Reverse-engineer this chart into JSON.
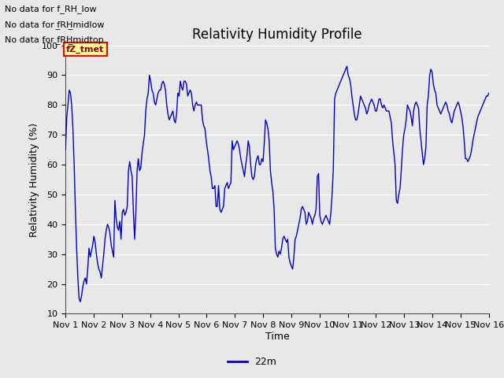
{
  "title": "Relativity Humidity Profile",
  "xlabel": "Time",
  "ylabel": "Relativity Humidity (%)",
  "ylim": [
    10,
    100
  ],
  "yticks": [
    10,
    20,
    30,
    40,
    50,
    60,
    70,
    80,
    90,
    100
  ],
  "xtick_labels": [
    "Nov 1",
    "Nov 2",
    "Nov 3",
    "Nov 4",
    "Nov 5",
    "Nov 6",
    "Nov 7",
    "Nov 8",
    "Nov 9",
    "Nov 10",
    "Nov 11",
    "Nov 12",
    "Nov 13",
    "Nov 14",
    "Nov 15",
    "Nov 16"
  ],
  "line_color": "#0000cc",
  "line_label": "22m",
  "bg_color": "#e8e8e8",
  "grid_color": "#ffffff",
  "text_annotations": [
    "No data for f_RH_low",
    "No data for f̲RH̲midlow",
    "No data for f̲RH̲midtop"
  ],
  "annotation_box_label": "fZ_tmet",
  "rh_values": [
    65,
    76,
    80,
    85,
    84,
    80,
    72,
    60,
    45,
    32,
    22,
    15,
    14,
    16,
    19,
    21,
    22,
    20,
    25,
    32,
    29,
    31,
    33,
    36,
    34,
    30,
    27,
    25,
    24,
    22,
    26,
    30,
    35,
    38,
    40,
    39,
    37,
    33,
    31,
    29,
    48,
    42,
    39,
    38,
    41,
    35,
    44,
    45,
    43,
    44,
    46,
    58,
    61,
    58,
    56,
    44,
    35,
    44,
    58,
    62,
    58,
    59,
    64,
    67,
    70,
    78,
    82,
    84,
    90,
    88,
    85,
    84,
    81,
    80,
    82,
    84,
    85,
    85,
    87,
    88,
    87,
    85,
    80,
    77,
    75,
    76,
    77,
    78,
    75,
    74,
    77,
    84,
    83,
    88,
    86,
    85,
    88,
    88,
    87,
    83,
    84,
    85,
    84,
    80,
    78,
    80,
    81,
    80,
    80,
    80,
    80,
    75,
    73,
    72,
    68,
    65,
    62,
    58,
    56,
    52,
    52,
    53,
    46,
    46,
    53,
    45,
    44,
    45,
    46,
    52,
    53,
    54,
    52,
    53,
    54,
    68,
    65,
    66,
    67,
    68,
    67,
    65,
    62,
    60,
    58,
    56,
    60,
    63,
    68,
    66,
    60,
    56,
    55,
    56,
    60,
    62,
    63,
    60,
    60,
    62,
    61,
    67,
    75,
    74,
    72,
    68,
    58,
    54,
    51,
    45,
    32,
    30,
    29,
    31,
    30,
    32,
    35,
    36,
    35,
    34,
    35,
    29,
    27,
    26,
    25,
    29,
    35,
    36,
    38,
    40,
    42,
    45,
    46,
    45,
    44,
    40,
    41,
    44,
    43,
    42,
    40,
    42,
    43,
    45,
    56,
    57,
    43,
    41,
    40,
    41,
    42,
    43,
    42,
    41,
    40,
    44,
    50,
    59,
    82,
    84,
    85,
    86,
    87,
    88,
    89,
    90,
    91,
    92,
    93,
    90,
    89,
    87,
    83,
    80,
    77,
    75,
    75,
    77,
    80,
    83,
    82,
    81,
    80,
    79,
    77,
    78,
    80,
    81,
    82,
    81,
    80,
    78,
    78,
    80,
    82,
    82,
    80,
    79,
    80,
    79,
    78,
    78,
    78,
    76,
    74,
    68,
    64,
    60,
    48,
    47,
    50,
    52,
    58,
    65,
    70,
    72,
    75,
    80,
    79,
    78,
    76,
    73,
    78,
    80,
    81,
    80,
    79,
    72,
    68,
    64,
    60,
    62,
    66,
    80,
    83,
    90,
    92,
    91,
    87,
    85,
    84,
    80,
    79,
    78,
    77,
    78,
    79,
    80,
    81,
    80,
    78,
    77,
    75,
    74,
    76,
    78,
    79,
    80,
    81,
    80,
    78,
    76,
    73,
    68,
    62,
    62,
    61,
    62,
    63,
    65,
    68,
    70,
    72,
    74,
    76,
    77,
    78,
    79,
    80,
    81,
    82,
    83,
    83,
    84
  ]
}
